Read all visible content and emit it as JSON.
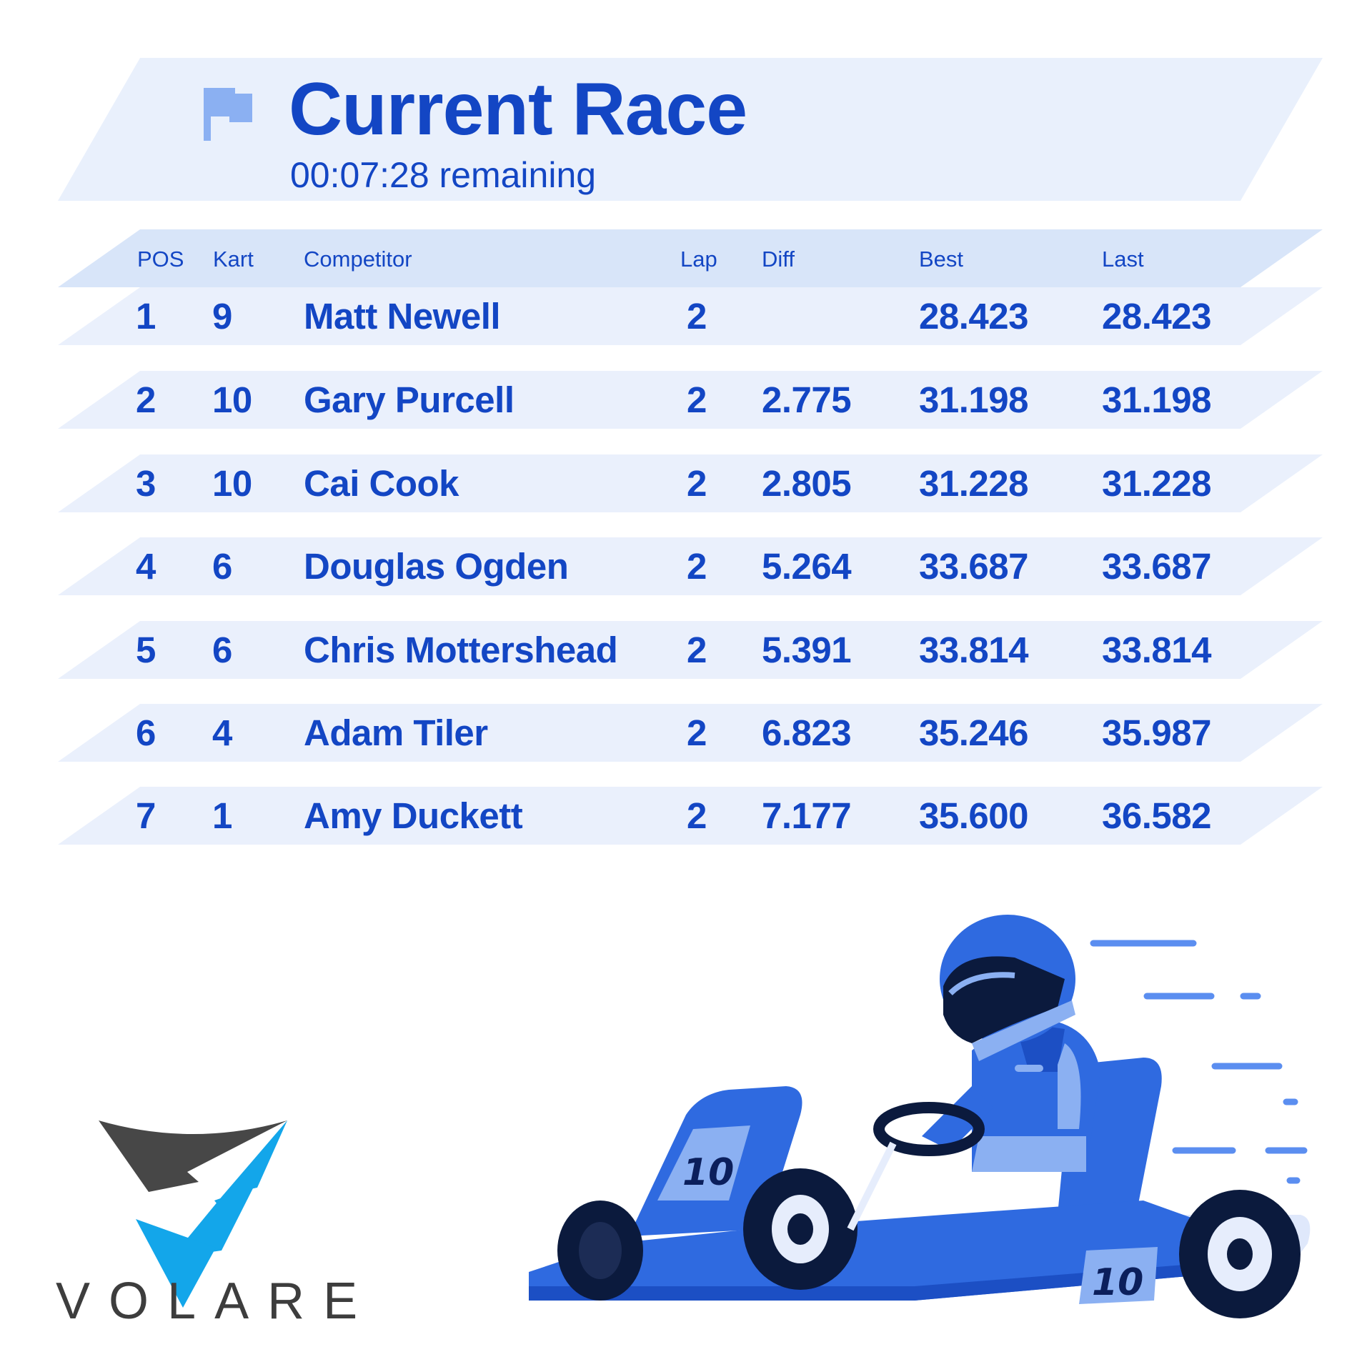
{
  "header": {
    "title": "Current Race",
    "remaining": "00:07:28 remaining",
    "icon": "flag-icon"
  },
  "table": {
    "columns": [
      "POS",
      "Kart",
      "Competitor",
      "Lap",
      "Diff",
      "Best",
      "Last"
    ],
    "rows": [
      {
        "pos": "1",
        "kart": "9",
        "competitor": "Matt Newell",
        "lap": "2",
        "diff": "",
        "best": "28.423",
        "last": "28.423"
      },
      {
        "pos": "2",
        "kart": "10",
        "competitor": "Gary Purcell",
        "lap": "2",
        "diff": "2.775",
        "best": "31.198",
        "last": "31.198"
      },
      {
        "pos": "3",
        "kart": "10",
        "competitor": "Cai Cook",
        "lap": "2",
        "diff": "2.805",
        "best": "31.228",
        "last": "31.228"
      },
      {
        "pos": "4",
        "kart": "6",
        "competitor": "Douglas Ogden",
        "lap": "2",
        "diff": "5.264",
        "best": "33.687",
        "last": "33.687"
      },
      {
        "pos": "5",
        "kart": "6",
        "competitor": "Chris Mottershead",
        "lap": "2",
        "diff": "5.391",
        "best": "33.814",
        "last": "33.814"
      },
      {
        "pos": "6",
        "kart": "4",
        "competitor": "Adam Tiler",
        "lap": "2",
        "diff": "6.823",
        "best": "35.246",
        "last": "35.987"
      },
      {
        "pos": "7",
        "kart": "1",
        "competitor": "Amy Duckett",
        "lap": "2",
        "diff": "7.177",
        "best": "35.600",
        "last": "36.582"
      }
    ]
  },
  "brand": {
    "name": "VOLARE",
    "icon": "volare-logo-icon"
  },
  "illustration": {
    "kart_number": "10",
    "icon": "go-kart-driver-icon"
  },
  "colors": {
    "primary": "#1346c4",
    "header_band": "#e9f0fc",
    "column_band": "#d8e5f9",
    "row_band": "#eaf0fc",
    "logo_dark": "#474747",
    "logo_blue": "#13a6ea",
    "kart_blue": "#2f6ae0"
  }
}
